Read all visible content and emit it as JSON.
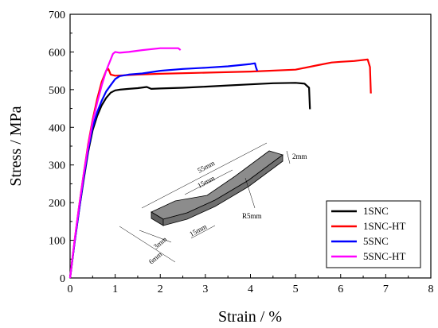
{
  "chart_data": {
    "type": "line",
    "xlabel": "Strain / %",
    "ylabel": "Stress / MPa",
    "xlim": [
      0,
      8
    ],
    "ylim": [
      0,
      700
    ],
    "xticks": [
      "0",
      "1",
      "2",
      "3",
      "4",
      "5",
      "6",
      "7",
      "8"
    ],
    "yticks": [
      "0",
      "100",
      "200",
      "300",
      "400",
      "500",
      "600",
      "700"
    ],
    "legend_position": "bottom-right",
    "grid": false,
    "series": [
      {
        "name": "1SNC",
        "color": "#000000",
        "x": [
          0,
          0.1,
          0.2,
          0.3,
          0.4,
          0.5,
          0.6,
          0.7,
          0.8,
          0.9,
          1.0,
          1.1,
          1.3,
          1.5,
          1.7,
          1.8,
          2.0,
          2.5,
          3.0,
          3.5,
          4.0,
          4.5,
          5.0,
          5.2,
          5.3,
          5.32
        ],
        "y": [
          0,
          95,
          180,
          260,
          335,
          392,
          430,
          458,
          478,
          492,
          498,
          500,
          502,
          504,
          507,
          502,
          503,
          505,
          508,
          511,
          514,
          517,
          518,
          516,
          505,
          448
        ]
      },
      {
        "name": "1SNC-HT",
        "color": "#ff0000",
        "x": [
          0,
          0.1,
          0.2,
          0.3,
          0.4,
          0.5,
          0.6,
          0.7,
          0.8,
          0.85,
          0.9,
          1.0,
          1.2,
          1.5,
          2.0,
          3.0,
          4.0,
          5.0,
          5.5,
          5.8,
          6.0,
          6.3,
          6.6,
          6.65,
          6.67
        ],
        "y": [
          0,
          100,
          190,
          275,
          355,
          420,
          475,
          520,
          550,
          555,
          540,
          537,
          538,
          540,
          542,
          545,
          548,
          553,
          565,
          572,
          574,
          576,
          580,
          560,
          490
        ]
      },
      {
        "name": "5SNC",
        "color": "#0000ff",
        "x": [
          0,
          0.1,
          0.2,
          0.3,
          0.4,
          0.5,
          0.6,
          0.7,
          0.8,
          0.9,
          1.0,
          1.1,
          1.3,
          1.6,
          2.0,
          2.5,
          3.0,
          3.5,
          4.0,
          4.1,
          4.12,
          4.15
        ],
        "y": [
          0,
          95,
          180,
          265,
          340,
          400,
          440,
          470,
          495,
          512,
          528,
          536,
          540,
          543,
          550,
          555,
          558,
          562,
          568,
          570,
          560,
          550
        ]
      },
      {
        "name": "5SNC-HT",
        "color": "#ff00ff",
        "x": [
          0,
          0.1,
          0.2,
          0.3,
          0.4,
          0.5,
          0.6,
          0.7,
          0.8,
          0.9,
          0.95,
          1.0,
          1.1,
          1.3,
          1.6,
          2.0,
          2.2,
          2.4,
          2.45
        ],
        "y": [
          0,
          100,
          190,
          275,
          350,
          415,
          465,
          510,
          550,
          580,
          595,
          600,
          598,
          600,
          605,
          610,
          610,
          610,
          605
        ]
      }
    ],
    "inset": {
      "labels": [
        "55mm",
        "15mm",
        "2mm",
        "R5mm",
        "15mm",
        "3mm",
        "6mm"
      ]
    }
  }
}
